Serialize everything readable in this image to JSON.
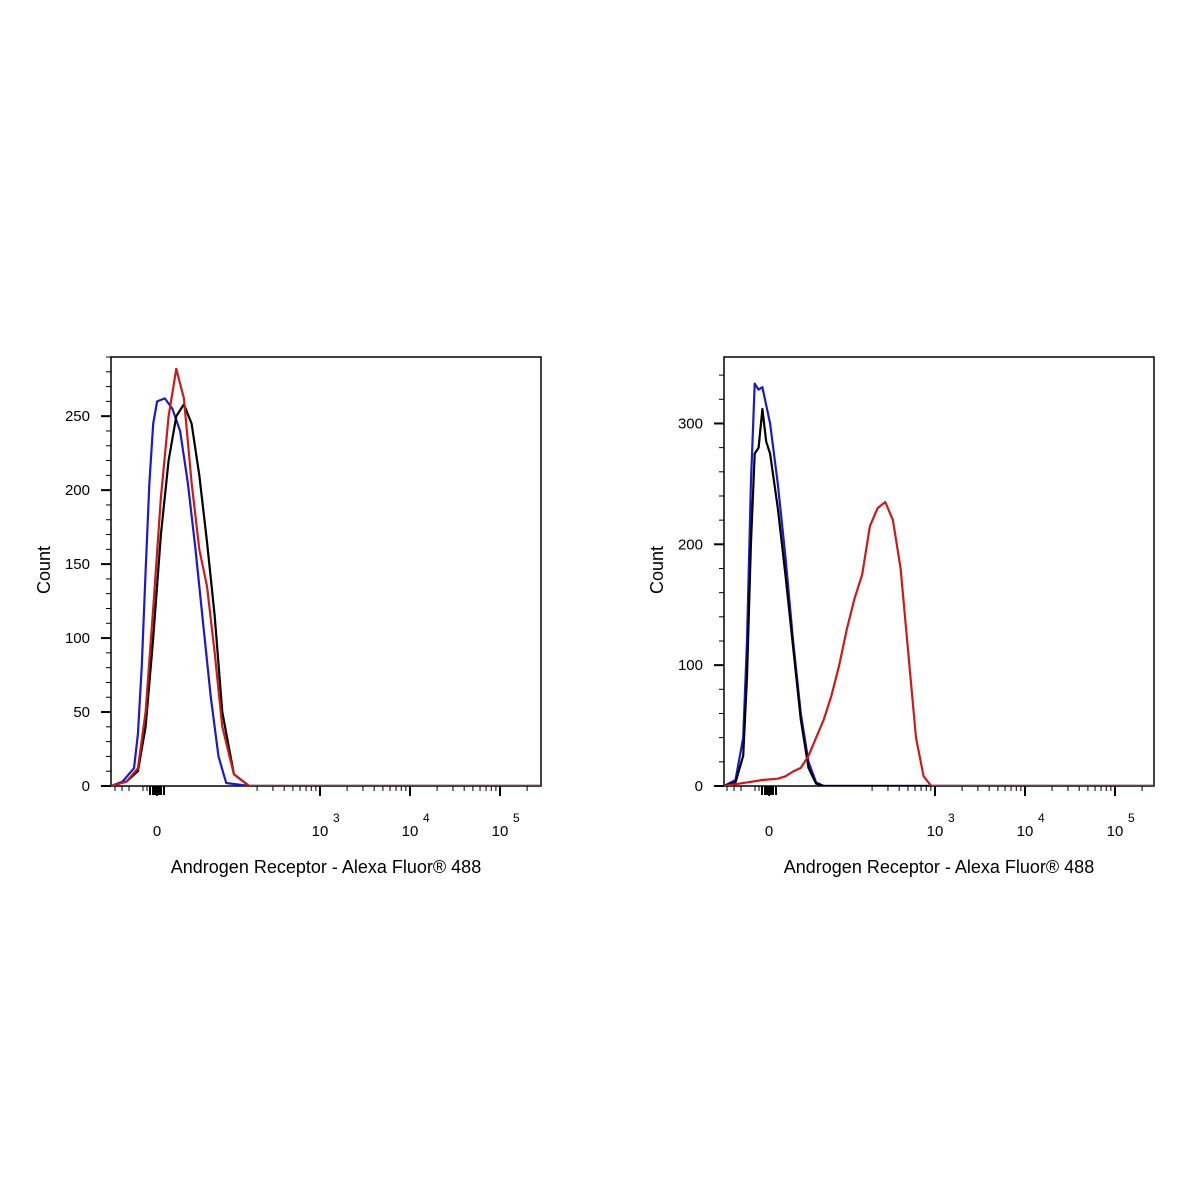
{
  "chart_data": [
    {
      "type": "line",
      "panel": "left",
      "xlabel": "Androgen Receptor - Alexa Fluor® 488",
      "ylabel": "Count",
      "xscale": "biexponential",
      "ylim": [
        0,
        290
      ],
      "yticks": [
        0,
        50,
        100,
        150,
        200,
        250
      ],
      "ytick_labels": [
        "0",
        "50",
        "100",
        "150",
        "200",
        "250"
      ],
      "xticks": [
        {
          "base": "0",
          "exp": ""
        },
        {
          "base": "10",
          "exp": "3"
        },
        {
          "base": "10",
          "exp": "4"
        },
        {
          "base": "10",
          "exp": "5"
        }
      ],
      "grid": false,
      "series": [
        {
          "color": "#1a1acc",
          "x": [
            -0.3,
            -0.15,
            0.0,
            0.05,
            0.1,
            0.15,
            0.2,
            0.25,
            0.3,
            0.4,
            0.5,
            0.6,
            0.7,
            0.8,
            0.9,
            1.0,
            1.1,
            1.2,
            1.5,
            2.0,
            2.5,
            3.0,
            3.5,
            4.0,
            4.5,
            5.0,
            5.3
          ],
          "y": [
            0,
            3,
            12,
            35,
            80,
            145,
            205,
            245,
            260,
            262,
            255,
            240,
            205,
            160,
            110,
            60,
            20,
            2,
            0,
            0,
            0,
            0,
            0,
            0,
            0,
            0,
            0
          ]
        },
        {
          "color": "#000000",
          "x": [
            -0.3,
            -0.1,
            0.05,
            0.15,
            0.25,
            0.35,
            0.45,
            0.55,
            0.65,
            0.75,
            0.85,
            0.95,
            1.05,
            1.15,
            1.3,
            1.5,
            2.0,
            2.5,
            3.0,
            3.5,
            4.0,
            4.5,
            5.0,
            5.3
          ],
          "y": [
            0,
            3,
            10,
            40,
            100,
            170,
            220,
            250,
            258,
            245,
            210,
            165,
            115,
            50,
            8,
            0,
            0,
            0,
            0,
            0,
            0,
            0,
            0,
            0
          ]
        },
        {
          "color": "#cc1a1a",
          "x": [
            -0.3,
            -0.1,
            0.05,
            0.15,
            0.25,
            0.35,
            0.45,
            0.55,
            0.65,
            0.75,
            0.85,
            0.95,
            1.05,
            1.15,
            1.3,
            1.5,
            2.0,
            2.5,
            3.0,
            3.5,
            4.0,
            4.5,
            5.0,
            5.3
          ],
          "y": [
            0,
            3,
            12,
            50,
            120,
            195,
            250,
            282,
            262,
            205,
            160,
            135,
            90,
            40,
            8,
            0,
            0,
            0,
            0,
            0,
            0,
            0,
            0,
            0
          ]
        }
      ]
    },
    {
      "type": "line",
      "panel": "right",
      "xlabel": "Androgen Receptor - Alexa Fluor® 488",
      "ylabel": "Count",
      "xscale": "biexponential",
      "ylim": [
        0,
        355
      ],
      "yticks": [
        0,
        100,
        200,
        300
      ],
      "ytick_labels": [
        "0",
        "100",
        "200",
        "300"
      ],
      "xticks": [
        {
          "base": "0",
          "exp": ""
        },
        {
          "base": "10",
          "exp": "3"
        },
        {
          "base": "10",
          "exp": "4"
        },
        {
          "base": "10",
          "exp": "5"
        }
      ],
      "grid": false,
      "series": [
        {
          "color": "#1a1acc",
          "x": [
            -0.3,
            -0.15,
            -0.05,
            0.0,
            0.05,
            0.1,
            0.15,
            0.2,
            0.3,
            0.4,
            0.5,
            0.6,
            0.7,
            0.8,
            0.9,
            1.0,
            1.2,
            1.5,
            2.0,
            2.5,
            3.0,
            3.5,
            4.0,
            4.5,
            5.0,
            5.3
          ],
          "y": [
            0,
            5,
            40,
            120,
            250,
            333,
            328,
            330,
            300,
            250,
            190,
            120,
            60,
            20,
            3,
            0,
            0,
            0,
            0,
            0,
            0,
            0,
            0,
            0,
            0,
            0
          ]
        },
        {
          "color": "#000000",
          "x": [
            -0.3,
            -0.15,
            -0.05,
            0.0,
            0.05,
            0.1,
            0.15,
            0.2,
            0.25,
            0.3,
            0.4,
            0.5,
            0.6,
            0.7,
            0.8,
            0.9,
            1.0,
            1.2,
            1.5,
            2.0,
            2.5,
            3.0,
            3.5,
            4.0,
            4.5,
            5.0,
            5.3
          ],
          "y": [
            0,
            3,
            25,
            90,
            200,
            275,
            280,
            312,
            285,
            275,
            230,
            175,
            115,
            55,
            15,
            2,
            0,
            0,
            0,
            0,
            0,
            0,
            0,
            0,
            0,
            0,
            0
          ]
        },
        {
          "color": "#cc1a1a",
          "x": [
            -0.3,
            0.0,
            0.2,
            0.4,
            0.5,
            0.6,
            0.7,
            0.8,
            0.9,
            1.0,
            1.1,
            1.2,
            1.3,
            1.4,
            1.5,
            1.6,
            1.7,
            1.8,
            1.9,
            2.0,
            2.1,
            2.2,
            2.3,
            2.4,
            2.6,
            3.0,
            3.5,
            4.0,
            4.5,
            5.0,
            5.3
          ],
          "y": [
            0,
            3,
            5,
            6,
            8,
            12,
            15,
            25,
            40,
            55,
            75,
            100,
            130,
            155,
            175,
            215,
            230,
            235,
            220,
            180,
            110,
            40,
            8,
            0,
            0,
            0,
            0,
            0,
            0,
            0,
            0
          ]
        }
      ]
    }
  ]
}
